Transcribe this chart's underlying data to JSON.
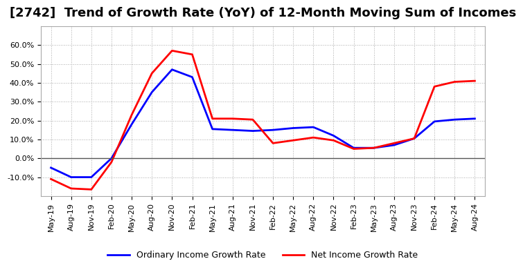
{
  "title": "[2742]  Trend of Growth Rate (YoY) of 12-Month Moving Sum of Incomes",
  "ordinary_income": {
    "dates": [
      "May-19",
      "Aug-19",
      "Nov-19",
      "Feb-20",
      "May-20",
      "Aug-20",
      "Nov-20",
      "Feb-21",
      "May-21",
      "Aug-21",
      "Nov-21",
      "Feb-22",
      "May-22",
      "Aug-22",
      "Nov-22",
      "Feb-23",
      "May-23",
      "Aug-23",
      "Nov-23",
      "Feb-24",
      "May-24",
      "Aug-24"
    ],
    "values": [
      -5.0,
      -10.0,
      -10.0,
      0.0,
      18.0,
      35.0,
      47.0,
      43.0,
      15.5,
      15.0,
      14.5,
      15.0,
      16.0,
      16.5,
      12.0,
      5.5,
      5.5,
      7.0,
      10.5,
      19.5,
      20.5,
      21.0
    ]
  },
  "net_income": {
    "dates": [
      "May-19",
      "Aug-19",
      "Nov-19",
      "Feb-20",
      "May-20",
      "Aug-20",
      "Nov-20",
      "Feb-21",
      "May-21",
      "Aug-21",
      "Nov-21",
      "Feb-22",
      "May-22",
      "Aug-22",
      "Nov-22",
      "Feb-23",
      "May-23",
      "Aug-23",
      "Nov-23",
      "Feb-24",
      "May-24",
      "Aug-24"
    ],
    "values": [
      -11.0,
      -16.0,
      -16.5,
      -2.0,
      23.0,
      45.0,
      57.0,
      55.0,
      21.0,
      21.0,
      20.5,
      8.0,
      9.5,
      11.0,
      9.5,
      5.0,
      5.5,
      8.0,
      10.5,
      38.0,
      40.5,
      41.0
    ]
  },
  "ordinary_color": "#0000ff",
  "net_color": "#ff0000",
  "ylim": [
    -20.0,
    70.0
  ],
  "yticks": [
    -10.0,
    0.0,
    10.0,
    20.0,
    30.0,
    40.0,
    50.0,
    60.0
  ],
  "background_color": "#ffffff",
  "plot_background": "#ffffff",
  "grid_color": "#aaaaaa",
  "ordinary_label": "Ordinary Income Growth Rate",
  "net_label": "Net Income Growth Rate",
  "title_fontsize": 13,
  "label_fontsize": 9,
  "tick_fontsize": 8
}
